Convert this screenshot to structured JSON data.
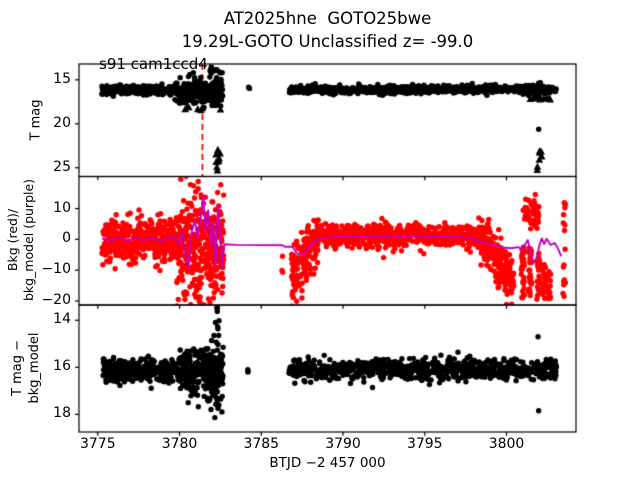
{
  "figure": {
    "title": "AT2025hne  GOTO25bwe",
    "subtitle": "19.29L-GOTO Unclassified z= -99.0",
    "annotation": "s91 cam1ccd4",
    "colors": {
      "points_dark": "#000000",
      "points_bkg": "#ff0000",
      "model_line": "#bf00bf",
      "vline": "#ff0000",
      "background": "#ffffff",
      "axis": "#000000"
    }
  },
  "chart_data": {
    "type": "scatter",
    "title": "AT2025hne  GOTO25bwe",
    "subtitle": "19.29L-GOTO Unclassified z= -99.0",
    "grid": false,
    "legend": "none",
    "x_axis": {
      "label": "BTJD −2 457 000",
      "ticks": [
        3775,
        3780,
        3785,
        3790,
        3795,
        3800
      ],
      "range": [
        3773.85,
        3804.25
      ]
    },
    "panels": [
      {
        "id": "tmag",
        "ylabel_lines": [
          "T mag"
        ],
        "yticks": [
          15,
          20,
          25
        ],
        "ytop": 13.2,
        "ybot": 26.0,
        "inverted": true,
        "vline": {
          "x": 3781.4,
          "color": "#ff0000",
          "style": "dashed"
        },
        "annotation": {
          "text": "s91 cam1ccd4",
          "x": 3775.4,
          "y": 13.6
        },
        "series": [
          {
            "name": "tess-mag-points",
            "color": "#000000",
            "marker": "circle",
            "segments": [
              {
                "x0": 3775.25,
                "x1": 3779.7,
                "y0": 16.15,
                "y1": 16.15,
                "s": 0.5,
                "n": 340,
                "d": "n"
              },
              {
                "x0": 3779.7,
                "x1": 3782.65,
                "y0": 16.35,
                "y1": 16.35,
                "s": 1.6,
                "n": 240,
                "d": "n"
              },
              {
                "x0": 3781.85,
                "x1": 3782.65,
                "y0": 14.5,
                "y1": 14.5,
                "s": 1.0,
                "n": 14,
                "d": "u"
              },
              {
                "x0": 3784.15,
                "x1": 3784.3,
                "y0": 15.9,
                "y1": 15.9,
                "s": 0.08,
                "n": 3,
                "d": "u"
              },
              {
                "x0": 3786.7,
                "x1": 3803.05,
                "y0": 16.1,
                "y1": 16.1,
                "s": 0.45,
                "n": 820,
                "d": "n"
              },
              {
                "x0": 3801.9,
                "x1": 3802.1,
                "y0": 15.35,
                "y1": 15.35,
                "s": 0.05,
                "n": 2,
                "d": "u"
              },
              {
                "x0": 3801.95,
                "x1": 3802.05,
                "y0": 20.6,
                "y1": 20.6,
                "s": 0.05,
                "n": 1,
                "d": "u"
              }
            ]
          },
          {
            "name": "upper-limit-triangles",
            "color": "#000000",
            "marker": "triangle-up",
            "segments": [
              {
                "x0": 3780.3,
                "x1": 3782.6,
                "y0": 17.6,
                "y1": 17.6,
                "s": 1.2,
                "n": 20,
                "d": "n"
              },
              {
                "x0": 3782.15,
                "x1": 3782.5,
                "y0": 24.0,
                "y1": 24.0,
                "s": 1.35,
                "n": 9,
                "d": "u"
              },
              {
                "x0": 3801.1,
                "x1": 3802.75,
                "y0": 17.15,
                "y1": 17.15,
                "s": 0.3,
                "n": 11,
                "d": "n"
              },
              {
                "x0": 3801.85,
                "x1": 3802.2,
                "y0": 24.2,
                "y1": 24.2,
                "s": 1.4,
                "n": 7,
                "d": "u"
              }
            ]
          }
        ]
      },
      {
        "id": "bkg",
        "ylabel_lines": [
          "Bkg (red)/",
          "bkg_model (purple)"
        ],
        "yticks": [
          10,
          0,
          -10,
          -20
        ],
        "ytop": 20.4,
        "ybot": -21.3,
        "inverted": false,
        "series": [
          {
            "name": "background-points",
            "color": "#ff0000",
            "marker": "circle",
            "segments": [
              {
                "x0": 3775.25,
                "x1": 3779.8,
                "y0": -0.8,
                "y1": -0.8,
                "s": 7.0,
                "n": 430,
                "d": "n"
              },
              {
                "x0": 3779.8,
                "x1": 3782.7,
                "y0": -2.5,
                "y1": -2.5,
                "s": 18.0,
                "n": 380,
                "d": "n"
              },
              {
                "x0": 3786.25,
                "x1": 3786.4,
                "y0": -7,
                "y1": -7,
                "s": 4.2,
                "n": 3,
                "d": "u"
              },
              {
                "x0": 3786.85,
                "x1": 3788.5,
                "y0": -12,
                "y1": 0.5,
                "s": 9.0,
                "n": 170,
                "d": "n"
              },
              {
                "x0": 3788.5,
                "x1": 3798.4,
                "y0": 1.2,
                "y1": 1.2,
                "s": 3.6,
                "n": 650,
                "d": "n"
              },
              {
                "x0": 3798.4,
                "x1": 3800.45,
                "y0": 0.0,
                "y1": -14.0,
                "s": 8.0,
                "n": 210,
                "d": "n"
              },
              {
                "x0": 3801.0,
                "x1": 3802.0,
                "y0": 8.5,
                "y1": 8.5,
                "s": 5.5,
                "n": 55,
                "d": "n"
              },
              {
                "x0": 3800.9,
                "x1": 3801.1,
                "y0": -11,
                "y1": -11,
                "s": 8.5,
                "n": 28,
                "d": "u"
              },
              {
                "x0": 3801.35,
                "x1": 3801.55,
                "y0": -11,
                "y1": -11,
                "s": 8.5,
                "n": 28,
                "d": "u"
              },
              {
                "x0": 3801.85,
                "x1": 3802.05,
                "y0": -12,
                "y1": -12,
                "s": 7.5,
                "n": 24,
                "d": "u"
              },
              {
                "x0": 3802.2,
                "x1": 3802.4,
                "y0": -14,
                "y1": -14,
                "s": 6.0,
                "n": 20,
                "d": "u"
              },
              {
                "x0": 3802.55,
                "x1": 3802.7,
                "y0": -13,
                "y1": -13,
                "s": 7.0,
                "n": 14,
                "d": "u"
              },
              {
                "x0": 3803.45,
                "x1": 3803.6,
                "y0": -2.5,
                "y1": -2.5,
                "s": 16.5,
                "n": 17,
                "d": "u"
              }
            ]
          }
        ],
        "line": {
          "name": "bkg-model-line",
          "color": "#bf00bf",
          "points": [
            [
              3775.25,
              0.3
            ],
            [
              3775.8,
              -0.2
            ],
            [
              3776.3,
              0.4
            ],
            [
              3776.8,
              -0.3
            ],
            [
              3777.3,
              0.3
            ],
            [
              3777.8,
              -0.2
            ],
            [
              3778.3,
              0.4
            ],
            [
              3778.8,
              -0.3
            ],
            [
              3779.3,
              0.2
            ],
            [
              3779.7,
              0.8
            ],
            [
              3779.95,
              -1.5
            ],
            [
              3780.15,
              2.5
            ],
            [
              3780.35,
              -4.0
            ],
            [
              3780.55,
              -9.0
            ],
            [
              3780.75,
              3.0
            ],
            [
              3780.95,
              6.0
            ],
            [
              3781.1,
              0.5
            ],
            [
              3781.3,
              7.0
            ],
            [
              3781.45,
              14.0
            ],
            [
              3781.6,
              3.0
            ],
            [
              3781.75,
              9.5
            ],
            [
              3781.9,
              -2.0
            ],
            [
              3782.05,
              5.5
            ],
            [
              3782.2,
              -8.5
            ],
            [
              3782.35,
              11.0
            ],
            [
              3782.5,
              1.0
            ],
            [
              3782.6,
              -9.0
            ],
            [
              3782.75,
              -1.6
            ],
            [
              3783.5,
              -1.8
            ],
            [
              3786.3,
              -1.9
            ],
            [
              3786.45,
              -2.4
            ],
            [
              3786.9,
              -2.4
            ],
            [
              3787.2,
              -4.6
            ],
            [
              3787.5,
              -5.0
            ],
            [
              3787.8,
              -3.6
            ],
            [
              3788.2,
              -1.0
            ],
            [
              3788.6,
              0.4
            ],
            [
              3789.5,
              0.9
            ],
            [
              3790.5,
              1.1
            ],
            [
              3791.5,
              0.9
            ],
            [
              3792.5,
              1.2
            ],
            [
              3793.5,
              1.0
            ],
            [
              3794.5,
              1.2
            ],
            [
              3795.5,
              1.0
            ],
            [
              3796.5,
              0.8
            ],
            [
              3797.3,
              0.8
            ],
            [
              3797.9,
              0.2
            ],
            [
              3798.5,
              -0.8
            ],
            [
              3799.2,
              -1.8
            ],
            [
              3799.8,
              -2.6
            ],
            [
              3800.3,
              -2.9
            ],
            [
              3800.7,
              -2.5
            ],
            [
              3801.0,
              -3.5
            ],
            [
              3801.15,
              -1.5
            ],
            [
              3801.3,
              -0.2
            ],
            [
              3801.5,
              -5.0
            ],
            [
              3801.65,
              -7.5
            ],
            [
              3801.85,
              -6.0
            ],
            [
              3802.0,
              -2.2
            ],
            [
              3802.15,
              0.3
            ],
            [
              3802.3,
              -1.5
            ],
            [
              3802.45,
              0.2
            ],
            [
              3802.7,
              -1.8
            ],
            [
              3802.95,
              -1.2
            ],
            [
              3803.15,
              -3.0
            ],
            [
              3803.35,
              -5.5
            ]
          ]
        }
      },
      {
        "id": "resid",
        "ylabel_lines": [
          "T mag −",
          "bkg_model"
        ],
        "yticks": [
          14,
          16,
          18
        ],
        "ytop": 13.35,
        "ybot": 18.75,
        "inverted": true,
        "series": [
          {
            "name": "detrended-mag-points",
            "color": "#000000",
            "marker": "circle",
            "segments": [
              {
                "x0": 3775.25,
                "x1": 3780.0,
                "y0": 16.15,
                "y1": 16.15,
                "s": 0.46,
                "n": 340,
                "d": "n"
              },
              {
                "x0": 3780.0,
                "x1": 3782.65,
                "y0": 16.25,
                "y1": 16.25,
                "s": 1.0,
                "n": 240,
                "d": "n"
              },
              {
                "x0": 3781.7,
                "x1": 3782.7,
                "y0": 16.4,
                "y1": 16.4,
                "s": 1.7,
                "n": 60,
                "d": "n"
              },
              {
                "x0": 3782.2,
                "x1": 3782.45,
                "y0": 13.9,
                "y1": 13.9,
                "s": 0.65,
                "n": 6,
                "d": "u"
              },
              {
                "x0": 3784.15,
                "x1": 3784.3,
                "y0": 16.15,
                "y1": 16.15,
                "s": 0.08,
                "n": 3,
                "d": "u"
              },
              {
                "x0": 3786.7,
                "x1": 3803.05,
                "y0": 16.1,
                "y1": 16.1,
                "s": 0.42,
                "n": 820,
                "d": "n"
              },
              {
                "x0": 3801.9,
                "x1": 3802.0,
                "y0": 14.7,
                "y1": 14.7,
                "s": 0.02,
                "n": 1,
                "d": "u"
              },
              {
                "x0": 3801.9,
                "x1": 3802.0,
                "y0": 17.85,
                "y1": 17.85,
                "s": 0.02,
                "n": 1,
                "d": "u"
              }
            ]
          }
        ]
      }
    ]
  }
}
